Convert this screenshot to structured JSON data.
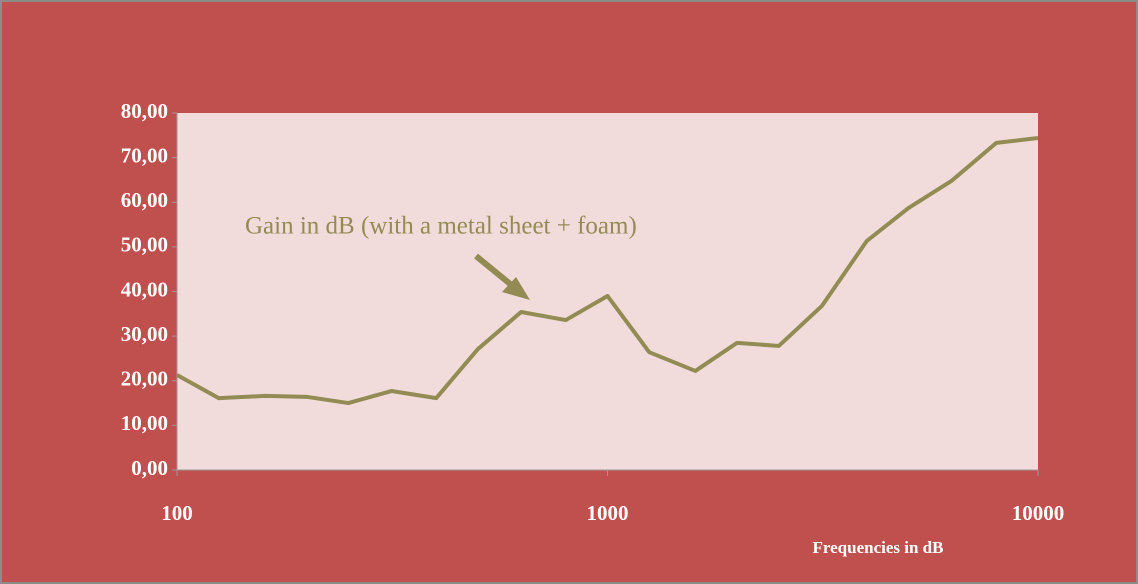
{
  "chart_data": {
    "type": "line",
    "annotation": "Gain in dB (with a metal sheet + foam)",
    "x_label": "Frequencies in dB",
    "x": [
      100,
      125,
      160,
      200,
      250,
      315,
      400,
      500,
      630,
      800,
      1000,
      1250,
      1600,
      2000,
      2500,
      3150,
      4000,
      5000,
      6300,
      8000,
      10000
    ],
    "values": [
      21.3,
      16.1,
      16.6,
      16.4,
      15.0,
      17.7,
      16.1,
      27.1,
      35.4,
      33.6,
      39.0,
      26.4,
      22.2,
      28.5,
      27.8,
      36.8,
      51.3,
      58.7,
      64.8,
      73.3,
      74.4
    ],
    "color": "#948a54",
    "xlim": [
      100,
      10000
    ],
    "xticks": [
      100,
      1000,
      10000
    ],
    "xscale": "log",
    "ylim": [
      0,
      80
    ],
    "yticks": [
      {
        "value": 0,
        "label": "0,00"
      },
      {
        "value": 10,
        "label": "10,00"
      },
      {
        "value": 20,
        "label": "20,00"
      },
      {
        "value": 30,
        "label": "30,00"
      },
      {
        "value": 40,
        "label": "40,00"
      },
      {
        "value": 50,
        "label": "50,00"
      },
      {
        "value": 60,
        "label": "60,00"
      },
      {
        "value": 70,
        "label": "70,00"
      },
      {
        "value": 80,
        "label": "80,00"
      }
    ]
  }
}
